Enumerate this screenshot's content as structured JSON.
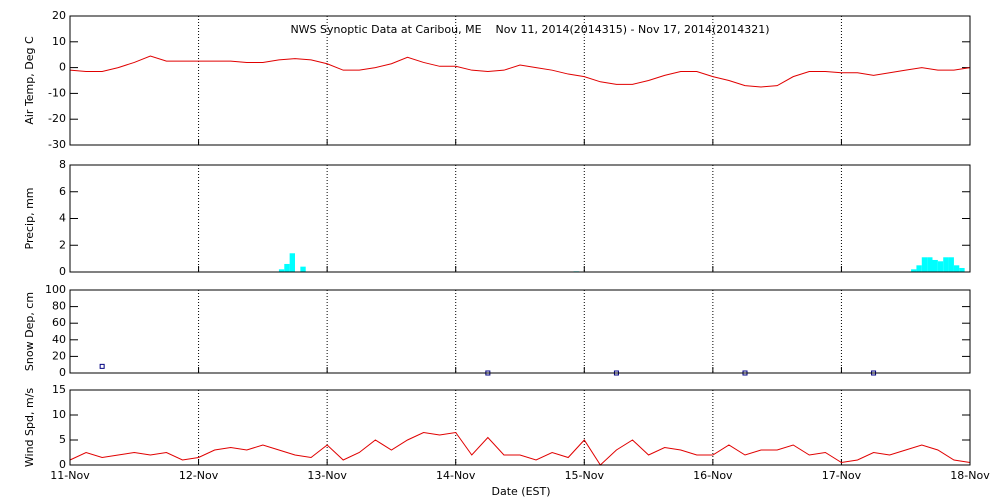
{
  "chart_data": [
    {
      "type": "line",
      "title": "NWS Synoptic Data at Caribou, ME    Nov 11, 2014(2014315) - Nov 17, 2014(2014321)",
      "ylabel": "Air Temp, Deg C",
      "ylim": [
        -30,
        20
      ],
      "yticks": [
        -30,
        -20,
        -10,
        0,
        10,
        20
      ],
      "color": "#e00000",
      "x": [
        0,
        3,
        6,
        9,
        12,
        15,
        18,
        21,
        24,
        27,
        30,
        33,
        36,
        39,
        42,
        45,
        48,
        51,
        54,
        57,
        60,
        63,
        66,
        69,
        72,
        75,
        78,
        81,
        84,
        87,
        90,
        93,
        96,
        99,
        102,
        105,
        108,
        111,
        114,
        117,
        120,
        123,
        126,
        129,
        132,
        135,
        138,
        141,
        144,
        147,
        150,
        153,
        156,
        159,
        162,
        165,
        168
      ],
      "values": [
        -1,
        -1.5,
        -1.5,
        0,
        2,
        4.5,
        2.5,
        2.5,
        2.5,
        2.5,
        2.5,
        2,
        2,
        3,
        3.5,
        3,
        1.5,
        -1,
        -1,
        0,
        1.5,
        4,
        2,
        0.5,
        0.5,
        -1,
        -1.5,
        -1,
        1,
        0,
        -1,
        -2.5,
        -3.5,
        -5.5,
        -6.5,
        -6.5,
        -5,
        -3,
        -1.5,
        -1.5,
        -3.5,
        -5,
        -7,
        -7.5,
        -7,
        -3.5,
        -1.5,
        -1.5,
        -2,
        -2,
        -3,
        -2,
        -1,
        0,
        -1,
        -1,
        0
      ]
    },
    {
      "type": "bar",
      "ylabel": "Precip, mm",
      "ylim": [
        0,
        8
      ],
      "yticks": [
        0,
        2,
        4,
        6,
        8
      ],
      "color": "#00ffff",
      "x": [
        39.5,
        40.5,
        41.5,
        43.5,
        94.5,
        157.5,
        158.5,
        159.5,
        160.5,
        161.5,
        162.5,
        163.5,
        164.5,
        165.5,
        166.5
      ],
      "values": [
        0.2,
        0.6,
        1.4,
        0.4,
        0.05,
        0.2,
        0.5,
        1.1,
        1.1,
        0.9,
        0.8,
        1.1,
        1.1,
        0.5,
        0.3
      ]
    },
    {
      "type": "scatter",
      "ylabel": "Snow Dep, cm",
      "ylim": [
        0,
        100
      ],
      "yticks": [
        0,
        20,
        40,
        60,
        80,
        100
      ],
      "color": "#000080",
      "x": [
        6,
        78,
        102,
        126,
        150
      ],
      "values": [
        8,
        0,
        0,
        0,
        0
      ]
    },
    {
      "type": "line",
      "ylabel": "Wind Spd, m/s",
      "xlabel": "Date (EST)",
      "ylim": [
        0,
        15
      ],
      "yticks": [
        0,
        5,
        10,
        15
      ],
      "color": "#e00000",
      "xlim": [
        0,
        168
      ],
      "xticks": [
        {
          "value": 0,
          "label": "11-Nov"
        },
        {
          "value": 24,
          "label": "12-Nov"
        },
        {
          "value": 48,
          "label": "13-Nov"
        },
        {
          "value": 72,
          "label": "14-Nov"
        },
        {
          "value": 96,
          "label": "15-Nov"
        },
        {
          "value": 120,
          "label": "16-Nov"
        },
        {
          "value": 144,
          "label": "17-Nov"
        },
        {
          "value": 168,
          "label": "18-Nov"
        }
      ],
      "x": [
        0,
        3,
        6,
        9,
        12,
        15,
        18,
        21,
        24,
        27,
        30,
        33,
        36,
        39,
        42,
        45,
        48,
        51,
        54,
        57,
        60,
        63,
        66,
        69,
        72,
        75,
        78,
        81,
        84,
        87,
        90,
        93,
        96,
        99,
        102,
        105,
        108,
        111,
        114,
        117,
        120,
        123,
        126,
        129,
        132,
        135,
        138,
        141,
        144,
        147,
        150,
        153,
        156,
        159,
        162,
        165,
        168
      ],
      "values": [
        1,
        2.5,
        1.5,
        2,
        2.5,
        2,
        2.5,
        1,
        1.5,
        3,
        3.5,
        3,
        4,
        3,
        2,
        1.5,
        4,
        1,
        2.5,
        5,
        3,
        5,
        6.5,
        6,
        6.5,
        2,
        5.5,
        2,
        2,
        1,
        2.5,
        1.5,
        5,
        0,
        3,
        5,
        2,
        3.5,
        3,
        2,
        2,
        4,
        2,
        3,
        3,
        4,
        2,
        2.5,
        0.5,
        1,
        2.5,
        2,
        3,
        4,
        3,
        1,
        0.5
      ]
    }
  ]
}
